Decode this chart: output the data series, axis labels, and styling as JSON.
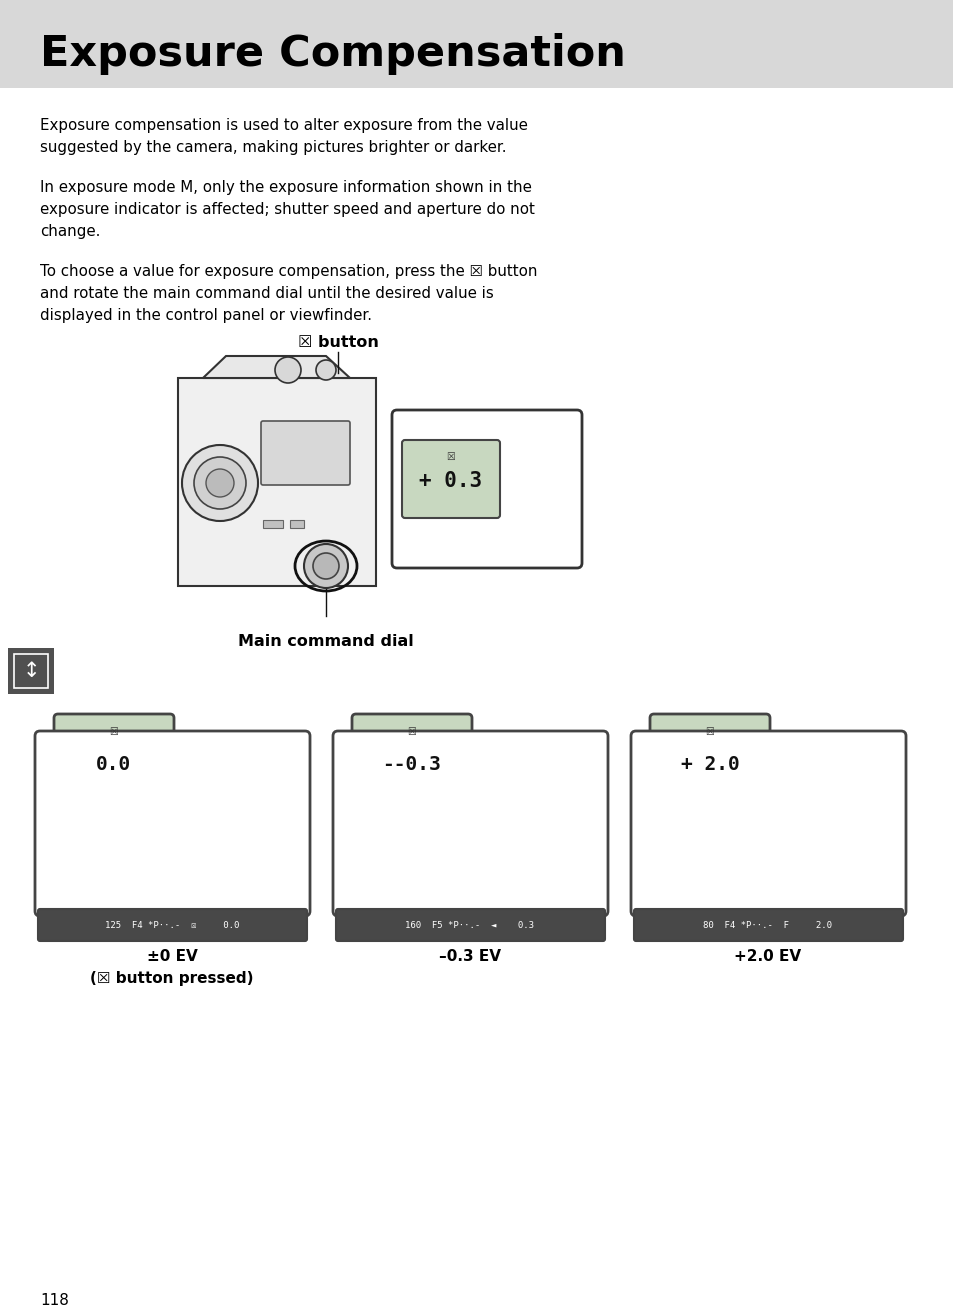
{
  "title": "Exposure Compensation",
  "title_bg": "#d8d8d8",
  "page_bg": "#ffffff",
  "text_color": "#000000",
  "para1_line1": "Exposure compensation is used to alter exposure from the value",
  "para1_line2": "suggested by the camera, making pictures brighter or darker.",
  "para2_line1": "In exposure mode M, only the exposure information shown in the",
  "para2_line2": "exposure indicator is affected; shutter speed and aperture do not",
  "para2_line3": "change.",
  "para3_line1": "To choose a value for exposure compensation, press the ☒ button",
  "para3_line2": "and rotate the main command dial until the desired value is",
  "para3_line3": "displayed in the control panel or viewfinder.",
  "button_label": "☒ button",
  "main_cmd_label": "Main command dial",
  "viewfinder_value": "+ 0.3",
  "panel_values": [
    "0.0",
    "--0.3",
    "+ 2.0"
  ],
  "panel_bottom_1": "125  F4 *P··.-  ☒     0.0",
  "panel_bottom_2": "160  F5 *P··.-  ◄    0.3",
  "panel_bottom_3": "80  F4 *P··.-  F     2.0",
  "panel_label_1a": "±0 EV",
  "panel_label_1b": "(☒ button pressed)",
  "panel_label_2": "–0.3 EV",
  "panel_label_3": "+2.0 EV",
  "page_number": "118",
  "strip_bg": "#484848",
  "strip_fg": "#ffffff",
  "lcd_bg": "#c8d8c0",
  "lcd_border": "#444444",
  "panel_border": "#444444",
  "icon_box_bg": "#505050"
}
